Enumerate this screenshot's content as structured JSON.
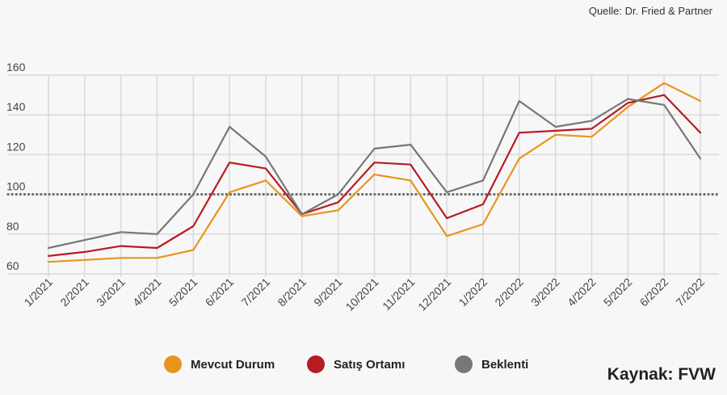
{
  "source_note": "Quelle: Dr. Fried & Partner",
  "credit": "Kaynak: FVW",
  "chart_data": {
    "type": "line",
    "title": "",
    "xlabel": "",
    "ylabel": "",
    "categories": [
      "1/2021",
      "2/2021",
      "3/2021",
      "4/2021",
      "5/2021",
      "6/2021",
      "7/2021",
      "8/2021",
      "9/2021",
      "10/2021",
      "11/2021",
      "12/2021",
      "1/2022",
      "2/2022",
      "3/2022",
      "4/2022",
      "5/2022",
      "6/2022",
      "7/2022"
    ],
    "yticks": [
      60,
      80,
      100,
      120,
      140,
      160
    ],
    "ylim": [
      60,
      160
    ],
    "grid": true,
    "reference_line": 100,
    "legend_position": "bottom",
    "series": [
      {
        "name": "Mevcut Durum",
        "color": "#e8951f",
        "values": [
          66,
          67,
          68,
          68,
          72,
          101,
          107,
          89,
          92,
          110,
          107,
          79,
          85,
          118,
          130,
          129,
          144,
          156,
          147
        ]
      },
      {
        "name": "Satış Ortamı",
        "color": "#b71c23",
        "values": [
          69,
          71,
          74,
          73,
          84,
          116,
          113,
          90,
          96,
          116,
          115,
          88,
          95,
          131,
          132,
          133,
          146,
          150,
          131
        ]
      },
      {
        "name": "Beklenti",
        "color": "#777777",
        "values": [
          73,
          77,
          81,
          80,
          100,
          134,
          119,
          90,
          100,
          123,
          125,
          101,
          107,
          147,
          134,
          137,
          148,
          145,
          118
        ]
      }
    ]
  }
}
